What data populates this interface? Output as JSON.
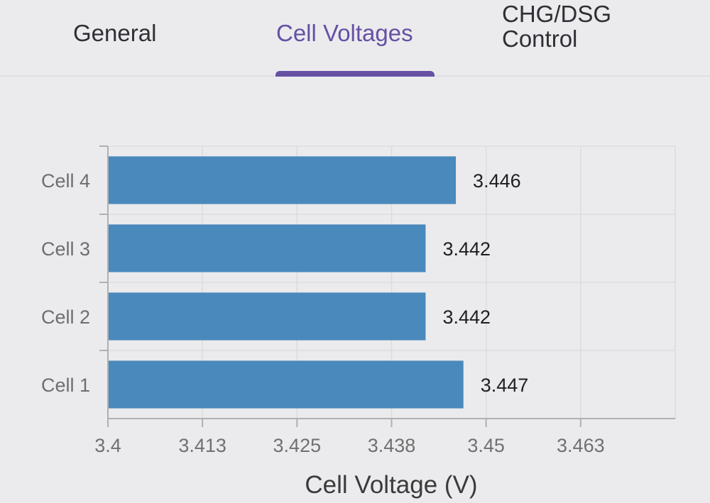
{
  "tabs": [
    {
      "label": "General",
      "active": false
    },
    {
      "label": "Cell Voltages",
      "active": true
    },
    {
      "label_lines": [
        "CHG/DSG",
        "Control"
      ],
      "active": false
    }
  ],
  "colors": {
    "accent": "#6650a4",
    "bar": "#4a89bb",
    "background": "#ebebed",
    "grid": "#dcdcdc"
  },
  "chart_data": {
    "type": "bar",
    "orientation": "horizontal",
    "categories": [
      "Cell 1",
      "Cell 2",
      "Cell 3",
      "Cell 4"
    ],
    "values": [
      3.447,
      3.442,
      3.442,
      3.446
    ],
    "value_labels": [
      "3.447",
      "3.442",
      "3.442",
      "3.446"
    ],
    "xlabel": "Cell Voltage (V)",
    "ylabel": "",
    "xlim": [
      3.4,
      3.475
    ],
    "x_ticks": [
      3.4,
      3.4125,
      3.425,
      3.4375,
      3.45,
      3.4625
    ],
    "x_tick_labels": [
      "3.4",
      "3.413",
      "3.425",
      "3.438",
      "3.45",
      "3.463"
    ],
    "grid": true
  }
}
